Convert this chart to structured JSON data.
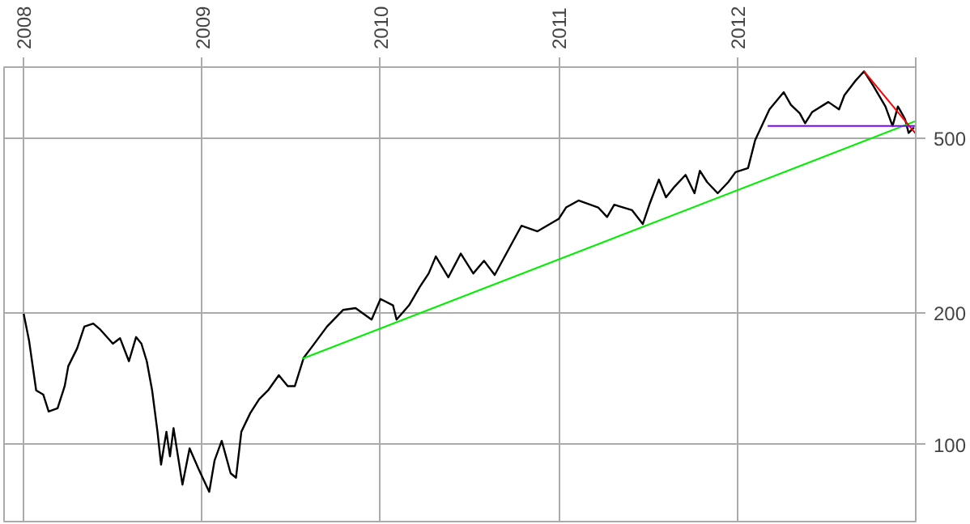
{
  "chart_data": {
    "type": "line",
    "log": "y",
    "grid": true,
    "marker": "none",
    "line_style": "solid",
    "xlim": [
      2007.89,
      2013.0
    ],
    "xticks": [
      2008,
      2009,
      2010,
      2011,
      2012,
      {
        "value": 2013,
        "label": null
      }
    ],
    "ylim": [
      66.7,
      728
    ],
    "yticks": [
      100,
      200,
      500
    ],
    "series": [
      {
        "color": "#000000",
        "x": [
          2008.0,
          2008.03,
          2008.07,
          2008.11,
          2008.14,
          2008.19,
          2008.23,
          2008.25,
          2008.3,
          2008.34,
          2008.39,
          2008.43,
          2008.5,
          2008.54,
          2008.59,
          2008.63,
          2008.66,
          2008.69,
          2008.72,
          2008.75,
          2008.77,
          2008.8,
          2008.82,
          2008.84,
          2008.89,
          2008.93,
          2008.98,
          2009.04,
          2009.07,
          2009.11,
          2009.16,
          2009.19,
          2009.22,
          2009.27,
          2009.32,
          2009.37,
          2009.43,
          2009.48,
          2009.52,
          2009.57,
          2009.61,
          2009.7,
          2009.79,
          2009.86,
          2009.95,
          2010.0,
          2010.07,
          2010.09,
          2010.16,
          2010.22,
          2010.27,
          2010.31,
          2010.38,
          2010.45,
          2010.52,
          2010.58,
          2010.64,
          2010.73,
          2010.79,
          2010.88,
          2011.0,
          2011.04,
          2011.11,
          2011.22,
          2011.27,
          2011.31,
          2011.41,
          2011.47,
          2011.51,
          2011.56,
          2011.6,
          2011.65,
          2011.71,
          2011.76,
          2011.79,
          2011.83,
          2011.89,
          2011.95,
          2011.99,
          2012.06,
          2012.1,
          2012.18,
          2012.26,
          2012.3,
          2012.35,
          2012.38,
          2012.42,
          2012.51,
          2012.57,
          2012.6,
          2012.66,
          2012.71,
          2012.76,
          2012.83,
          2012.87,
          2012.9,
          2012.94,
          2012.96,
          2012.99
        ],
        "values": [
          199,
          173,
          133,
          130,
          119,
          121,
          136,
          151,
          166,
          186,
          189,
          183,
          170,
          175,
          155,
          176,
          170,
          155,
          133,
          107,
          90,
          107,
          94,
          109,
          81,
          98,
          88,
          78,
          92,
          102,
          86,
          84,
          107,
          118,
          127,
          133,
          144,
          136,
          136,
          158,
          166,
          186,
          203,
          205,
          193,
          215,
          208,
          193,
          208,
          229,
          246,
          269,
          241,
          273,
          246,
          263,
          244,
          285,
          316,
          307,
          328,
          348,
          361,
          348,
          331,
          353,
          343,
          319,
          356,
          403,
          367,
          389,
          413,
          375,
          422,
          398,
          375,
          398,
          419,
          428,
          496,
          583,
          638,
          597,
          571,
          542,
          575,
          606,
          583,
          628,
          676,
          712,
          662,
          592,
          534,
          592,
          554,
          515,
          530
        ]
      },
      {
        "color": "#00ee00",
        "x": [
          2009.56,
          2013.0
        ],
        "values": [
          157,
          548
        ]
      },
      {
        "color": "#ff0000",
        "x": [
          2012.71,
          2013.0
        ],
        "values": [
          712,
          513
        ]
      },
      {
        "color": "#8000ff",
        "x": [
          2012.17,
          2013.0
        ],
        "values": [
          534,
          534
        ]
      }
    ]
  }
}
